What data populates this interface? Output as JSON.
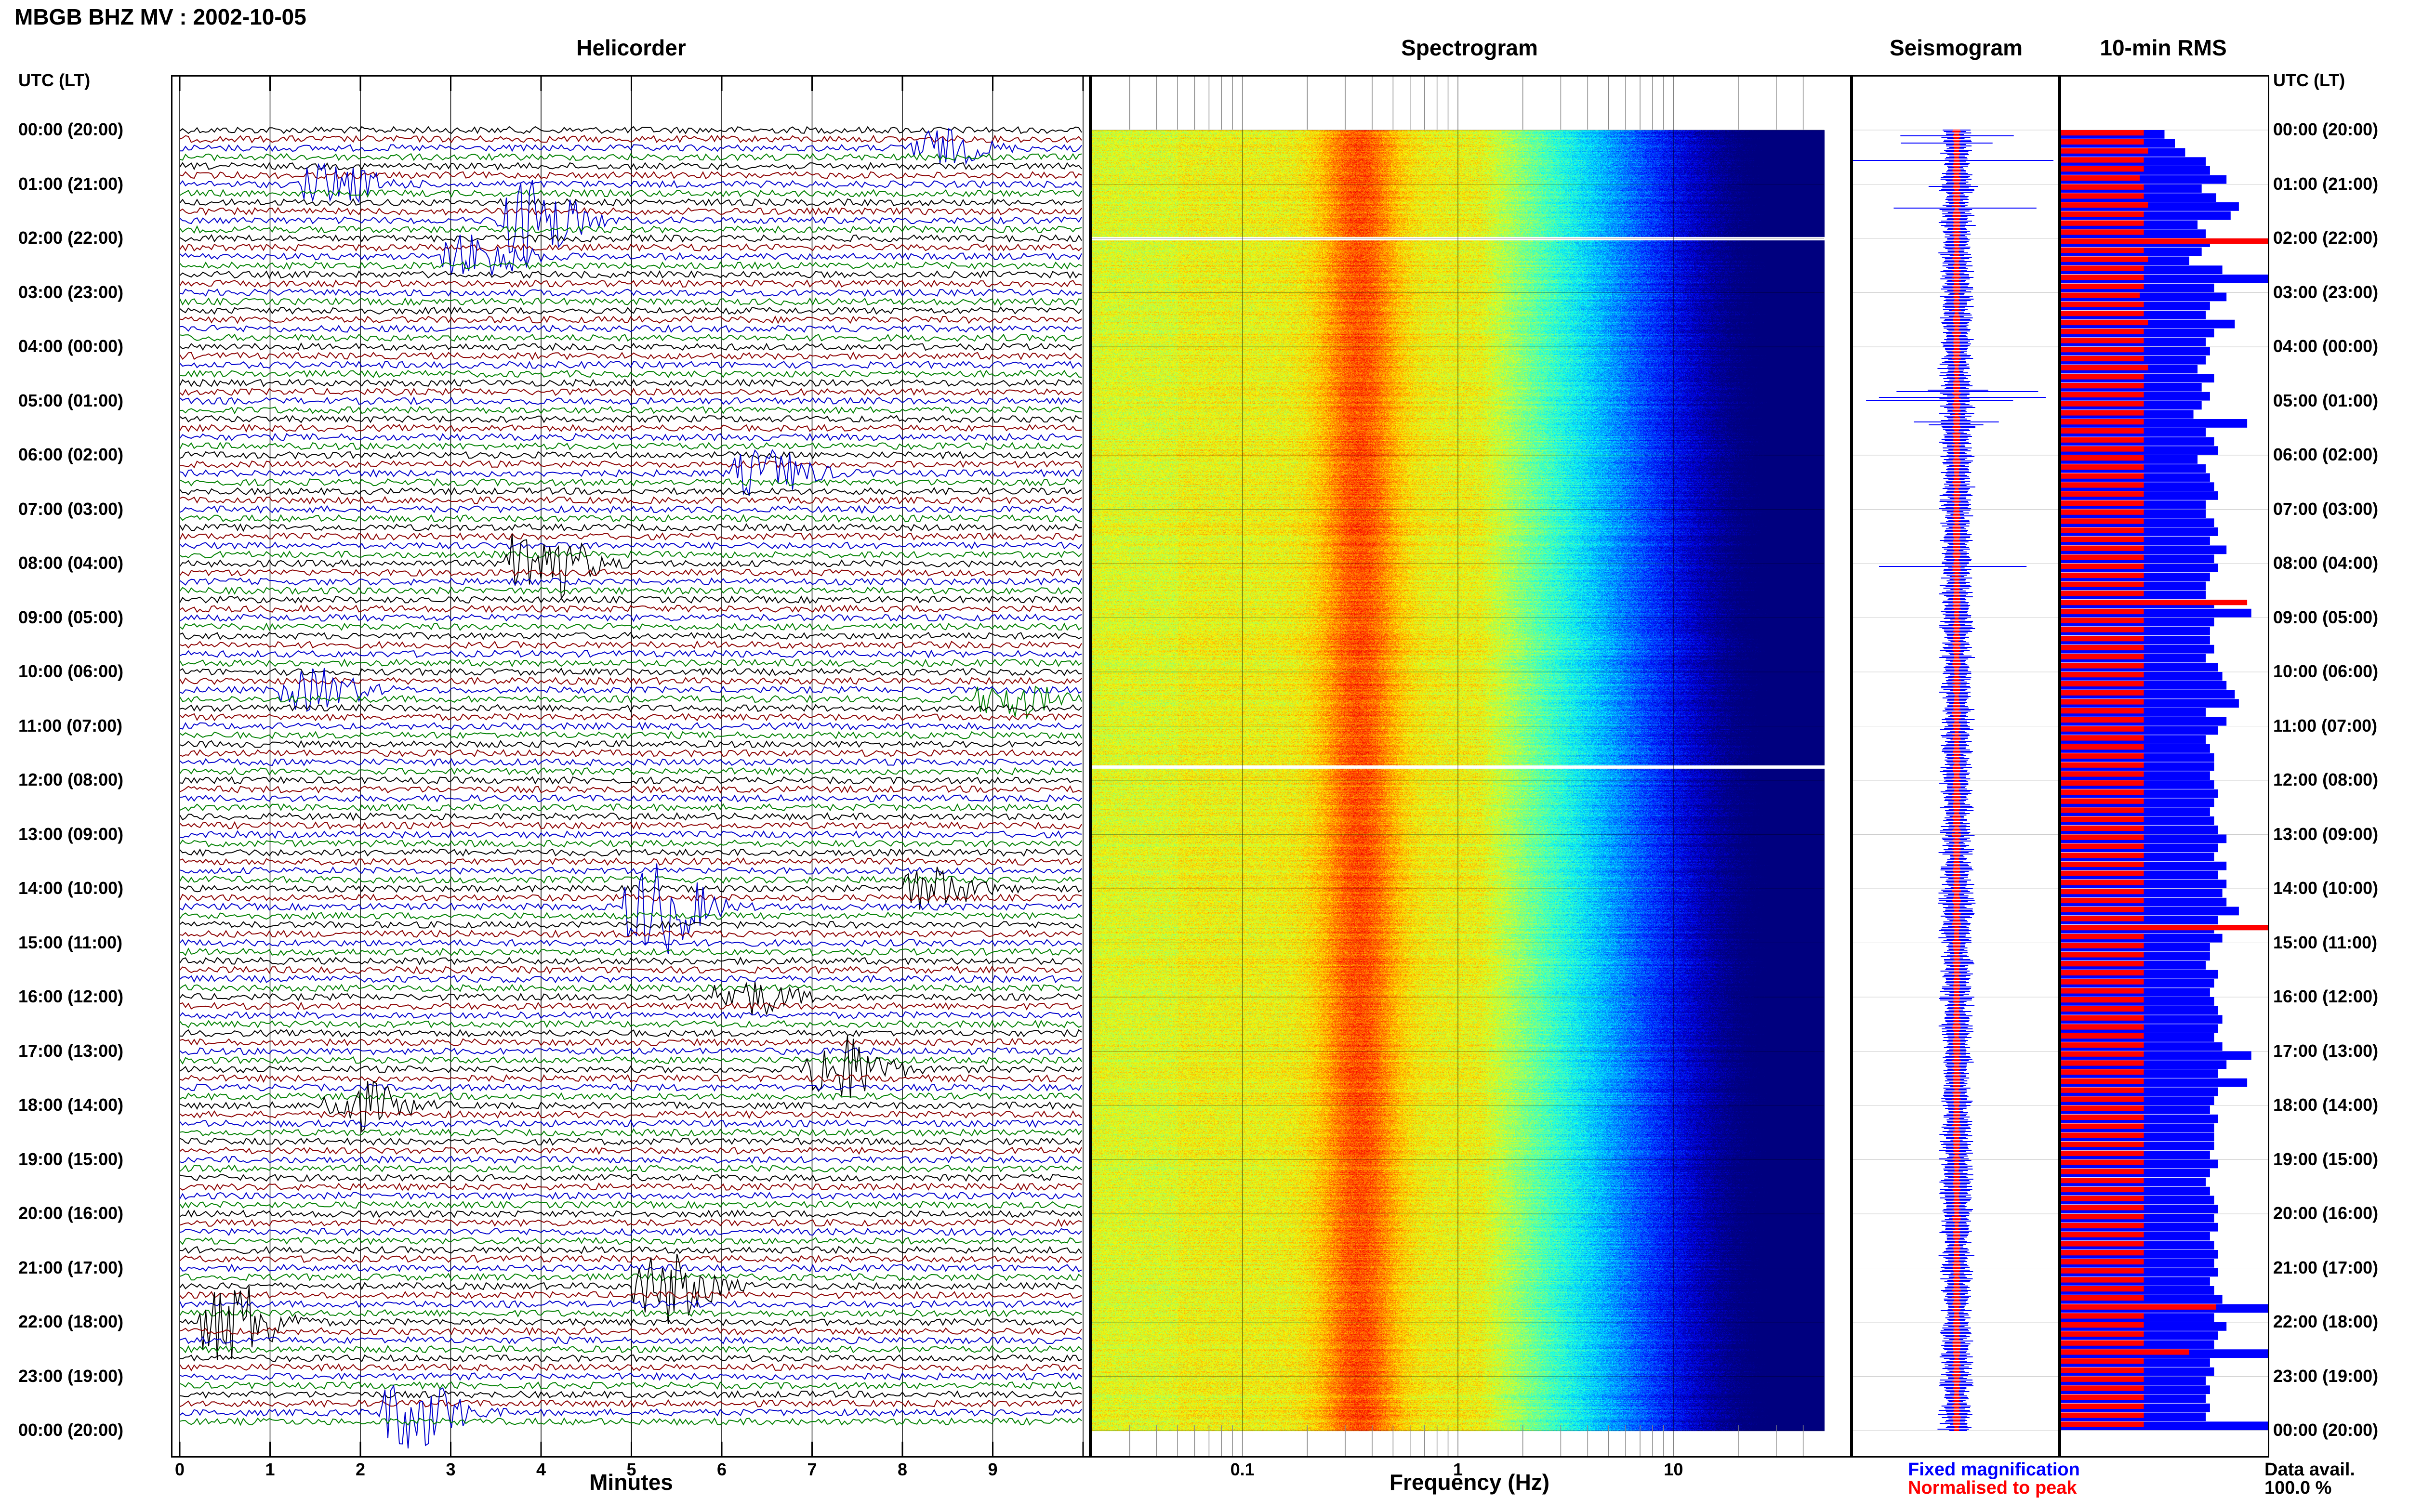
{
  "title": "MBGB BHZ MV : 2002-10-05",
  "panels": {
    "helicorder": "Helicorder",
    "spectrogram": "Spectrogram",
    "seismogram": "Seismogram",
    "rms": "10-min RMS"
  },
  "utc_header": "UTC (LT)",
  "hour_labels": [
    "00:00 (20:00)",
    "01:00 (21:00)",
    "02:00 (22:00)",
    "03:00 (23:00)",
    "04:00 (00:00)",
    "05:00 (01:00)",
    "06:00 (02:00)",
    "07:00 (03:00)",
    "08:00 (04:00)",
    "09:00 (05:00)",
    "10:00 (06:00)",
    "11:00 (07:00)",
    "12:00 (08:00)",
    "13:00 (09:00)",
    "14:00 (10:00)",
    "15:00 (11:00)",
    "16:00 (12:00)",
    "17:00 (13:00)",
    "18:00 (14:00)",
    "19:00 (15:00)",
    "20:00 (16:00)",
    "21:00 (17:00)",
    "22:00 (18:00)",
    "23:00 (19:00)",
    "00:00 (20:00)"
  ],
  "legend": {
    "fixed": "Fixed magnification",
    "normalised": "Normalised to peak",
    "fixed_color": "#0000ff",
    "normalised_color": "#ff0000"
  },
  "data_avail": {
    "label": "Data avail.",
    "value": "100.0 %"
  },
  "chart_data": [
    {
      "type": "line",
      "name": "helicorder",
      "title": "Helicorder",
      "xlabel": "Minutes",
      "x_ticks": [
        "0",
        "1",
        "2",
        "3",
        "4",
        "5",
        "6",
        "7",
        "8",
        "9"
      ],
      "xlim": [
        0,
        10
      ],
      "rows_per_hour": 6,
      "trace_colors": [
        "#000000",
        "#8b0000",
        "#0000cd",
        "#008000"
      ],
      "events": [
        {
          "hour": 0.3,
          "minute": 8.4,
          "color": "#008000",
          "amp": 0.6
        },
        {
          "hour": 1.0,
          "minute": 1.7,
          "color": "#0000cd",
          "amp": 0.7
        },
        {
          "hour": 1.7,
          "minute": 3.9,
          "color": "#008000",
          "amp": 1.5
        },
        {
          "hour": 2.3,
          "minute": 3.3,
          "color": "#0000cd",
          "amp": 0.8
        },
        {
          "hour": 6.3,
          "minute": 6.5,
          "color": "#0000cd",
          "amp": 0.8
        },
        {
          "hour": 8.0,
          "minute": 4.0,
          "color": "#8b0000",
          "amp": 1.4
        },
        {
          "hour": 10.3,
          "minute": 1.5,
          "color": "#0000cd",
          "amp": 0.7
        },
        {
          "hour": 10.5,
          "minute": 9.2,
          "color": "#008000",
          "amp": 0.6
        },
        {
          "hour": 14.0,
          "minute": 8.3,
          "color": "#8b0000",
          "amp": 0.7
        },
        {
          "hour": 14.3,
          "minute": 5.3,
          "color": "#008000",
          "amp": 1.6
        },
        {
          "hour": 16.0,
          "minute": 6.3,
          "color": "#8b0000",
          "amp": 0.6
        },
        {
          "hour": 17.3,
          "minute": 7.3,
          "color": "#8b0000",
          "amp": 1.2
        },
        {
          "hour": 18.0,
          "minute": 2.0,
          "color": "#8b0000",
          "amp": 0.8
        },
        {
          "hour": 21.3,
          "minute": 5.4,
          "color": "#008000",
          "amp": 1.2
        },
        {
          "hour": 22.0,
          "minute": 0.6,
          "color": "#8b0000",
          "amp": 1.4
        },
        {
          "hour": 23.7,
          "minute": 2.6,
          "color": "#0000cd",
          "amp": 1.3
        }
      ]
    },
    {
      "type": "heatmap",
      "name": "spectrogram",
      "title": "Spectrogram",
      "xlabel": "Frequency (Hz)",
      "x_scale": "log",
      "xlim": [
        0.02,
        50
      ],
      "x_ticks": [
        0.1,
        1,
        10
      ],
      "x_tick_labels": [
        "0.1",
        "1",
        "10"
      ],
      "peak_frequency_hz": 0.35,
      "gaps_hour": [
        2.0,
        11.75
      ]
    },
    {
      "type": "line",
      "name": "seismogram",
      "title": "Seismogram",
      "series": [
        {
          "name": "Fixed magnification",
          "color": "#0000ff"
        },
        {
          "name": "Normalised to peak",
          "color": "#ff0000"
        }
      ]
    },
    {
      "type": "bar",
      "name": "rms",
      "title": "10-min RMS",
      "categories_note": "144 ten-minute intervals 00:00-24:00 UTC",
      "series": [
        {
          "name": "Fixed magnification",
          "color": "#0000ff",
          "values": [
            0.5,
            0.55,
            0.6,
            0.7,
            0.72,
            0.8,
            0.68,
            0.75,
            0.86,
            0.82,
            0.66,
            0.7,
            0.72,
            0.68,
            0.62,
            0.78,
            1.0,
            0.74,
            0.8,
            0.72,
            0.7,
            0.84,
            0.74,
            0.7,
            0.72,
            0.7,
            0.66,
            0.74,
            0.68,
            0.72,
            0.68,
            0.64,
            0.9,
            0.7,
            0.74,
            0.76,
            0.66,
            0.7,
            0.72,
            0.74,
            0.76,
            0.7,
            0.7,
            0.74,
            0.76,
            0.72,
            0.8,
            0.74,
            0.76,
            0.72,
            0.7,
            0.7,
            0.74,
            0.92,
            0.74,
            0.72,
            0.72,
            0.74,
            0.7,
            0.76,
            0.78,
            0.8,
            0.84,
            0.86,
            0.7,
            0.8,
            0.76,
            0.7,
            0.72,
            0.74,
            0.74,
            0.72,
            0.74,
            0.76,
            0.74,
            0.72,
            0.74,
            0.76,
            0.8,
            0.76,
            0.74,
            0.8,
            0.76,
            0.8,
            0.78,
            0.8,
            0.86,
            0.76,
            0.74,
            0.78,
            0.72,
            0.72,
            0.7,
            0.76,
            0.74,
            0.72,
            0.74,
            0.76,
            0.78,
            0.76,
            0.74,
            0.78,
            0.92,
            0.8,
            0.76,
            0.9,
            0.76,
            0.74,
            0.72,
            0.76,
            0.74,
            0.74,
            0.74,
            0.72,
            0.76,
            0.72,
            0.7,
            0.72,
            0.74,
            0.76,
            0.74,
            0.76,
            0.72,
            0.74,
            0.76,
            0.74,
            0.76,
            0.72,
            0.74,
            0.78,
            1.0,
            0.74,
            0.8,
            0.76,
            0.74,
            1.0,
            0.72,
            0.74,
            0.7,
            0.72,
            0.7,
            0.72,
            0.7,
            1.0
          ]
        },
        {
          "name": "Normalised to peak",
          "color": "#ff0000",
          "values": [
            0.4,
            0.4,
            0.42,
            0.4,
            0.4,
            0.38,
            0.4,
            0.4,
            0.42,
            0.4,
            0.4,
            0.4,
            1.0,
            0.4,
            0.42,
            0.4,
            0.4,
            0.4,
            0.38,
            0.4,
            0.4,
            0.42,
            0.4,
            0.4,
            0.4,
            0.4,
            0.42,
            0.4,
            0.4,
            0.4,
            0.4,
            0.4,
            0.4,
            0.4,
            0.4,
            0.4,
            0.4,
            0.4,
            0.4,
            0.4,
            0.4,
            0.4,
            0.4,
            0.4,
            0.4,
            0.4,
            0.4,
            0.4,
            0.4,
            0.4,
            0.4,
            0.4,
            0.9,
            0.4,
            0.4,
            0.4,
            0.4,
            0.4,
            0.4,
            0.4,
            0.4,
            0.4,
            0.4,
            0.4,
            0.4,
            0.4,
            0.4,
            0.4,
            0.4,
            0.4,
            0.4,
            0.4,
            0.4,
            0.4,
            0.4,
            0.4,
            0.4,
            0.4,
            0.4,
            0.4,
            0.4,
            0.4,
            0.4,
            0.4,
            0.4,
            0.4,
            0.4,
            0.4,
            1.0,
            0.4,
            0.4,
            0.4,
            0.4,
            0.4,
            0.4,
            0.4,
            0.4,
            0.4,
            0.4,
            0.4,
            0.4,
            0.4,
            0.4,
            0.4,
            0.4,
            0.4,
            0.4,
            0.4,
            0.4,
            0.4,
            0.4,
            0.4,
            0.4,
            0.4,
            0.4,
            0.4,
            0.4,
            0.4,
            0.4,
            0.4,
            0.4,
            0.4,
            0.4,
            0.4,
            0.4,
            0.4,
            0.4,
            0.4,
            0.4,
            0.4,
            0.75,
            0.4,
            0.4,
            0.4,
            0.4,
            0.62,
            0.4,
            0.4,
            0.4,
            0.4,
            0.4,
            0.4,
            0.4,
            0.4
          ]
        }
      ]
    }
  ]
}
